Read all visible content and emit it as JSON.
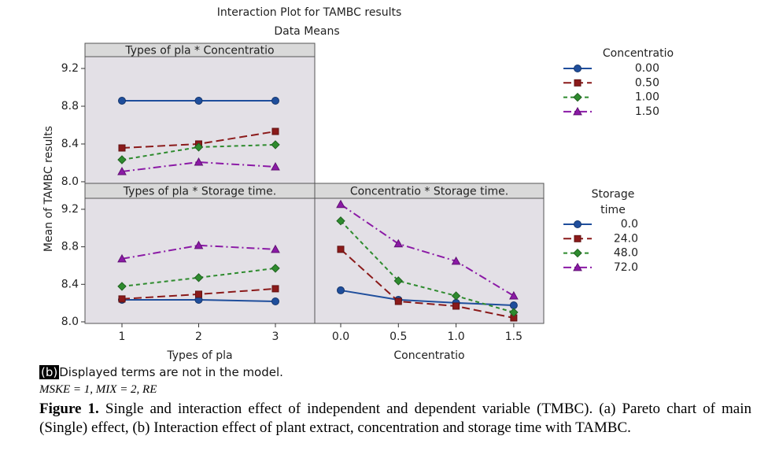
{
  "title": "Interaction Plot for TAMBC results",
  "subtitle": "Data Means",
  "y_label": "Mean of TAMBC results",
  "chart_data": [
    {
      "type": "line",
      "title": "Types of pla * Concentratio",
      "legend_title": "Concentratio",
      "x": [
        1,
        2,
        3
      ],
      "xlim": [
        0.518,
        3.513
      ],
      "ylim": [
        7.983,
        9.325
      ],
      "yticks": [
        {
          "value": 8.0,
          "label": "8.0"
        },
        {
          "value": 8.4,
          "label": "8.4"
        },
        {
          "value": 8.8,
          "label": "8.8"
        },
        {
          "value": 9.2,
          "label": "9.2"
        }
      ],
      "series": [
        {
          "name": "0.00",
          "color": "#1f4e9c",
          "marker": "circle",
          "dash": "solid",
          "values": [
            8.858,
            8.858,
            8.858
          ]
        },
        {
          "name": "0.50",
          "color": "#8b1a1a",
          "marker": "square",
          "dash": "long",
          "values": [
            8.358,
            8.4,
            8.533
          ]
        },
        {
          "name": "1.00",
          "color": "#2e8b2e",
          "marker": "diamond",
          "dash": "short",
          "values": [
            8.233,
            8.367,
            8.392
          ]
        },
        {
          "name": "1.50",
          "color": "#8b1aa6",
          "marker": "triangle",
          "dash": "dashdot",
          "values": [
            8.108,
            8.208,
            8.158
          ]
        }
      ]
    },
    {
      "type": "line",
      "title": "Types of pla * Storage time.",
      "x_label": "Types of pla",
      "x": [
        1,
        2,
        3
      ],
      "xlim": [
        0.518,
        3.513
      ],
      "xticks": [
        1,
        2,
        3
      ],
      "ylim": [
        7.983,
        9.317
      ],
      "yticks": [
        {
          "value": 8.0,
          "label": "8.0"
        },
        {
          "value": 8.4,
          "label": "8.4"
        },
        {
          "value": 8.8,
          "label": "8.8"
        },
        {
          "value": 9.2,
          "label": "9.2"
        }
      ],
      "series": [
        {
          "color": "#1f4e9c",
          "marker": "circle",
          "dash": "solid",
          "values": [
            8.235,
            8.235,
            8.218
          ]
        },
        {
          "color": "#8b1a1a",
          "marker": "square",
          "dash": "long",
          "values": [
            8.244,
            8.294,
            8.353
          ]
        },
        {
          "color": "#2e8b2e",
          "marker": "diamond",
          "dash": "short",
          "values": [
            8.378,
            8.471,
            8.571
          ]
        },
        {
          "color": "#8b1aa6",
          "marker": "triangle",
          "dash": "dashdot",
          "values": [
            8.672,
            8.815,
            8.773
          ]
        }
      ]
    },
    {
      "type": "line",
      "title": "Concentratio * Storage time.",
      "x_label": "Concentratio",
      "legend_title": "Storage time",
      "x": [
        0,
        0.5,
        1,
        1.5
      ],
      "xlim": [
        -0.225,
        1.76
      ],
      "xticks": [
        {
          "value": 0,
          "label": "0.0"
        },
        {
          "value": 0.5,
          "label": "0.5"
        },
        {
          "value": 1,
          "label": "1.0"
        },
        {
          "value": 1.5,
          "label": "1.5"
        }
      ],
      "ylim": [
        7.983,
        9.317
      ],
      "series": [
        {
          "name": "0.0",
          "color": "#1f4e9c",
          "marker": "circle",
          "dash": "solid",
          "values": [
            8.336,
            8.235,
            8.202,
            8.176
          ]
        },
        {
          "name": "24.0",
          "color": "#8b1a1a",
          "marker": "square",
          "dash": "long",
          "values": [
            8.773,
            8.218,
            8.168,
            8.042
          ]
        },
        {
          "name": "48.0",
          "color": "#2e8b2e",
          "marker": "diamond",
          "dash": "short",
          "values": [
            9.076,
            8.437,
            8.277,
            8.101
          ]
        },
        {
          "name": "72.0",
          "color": "#8b1aa6",
          "marker": "triangle",
          "dash": "dashdot",
          "values": [
            9.252,
            8.832,
            8.647,
            8.277
          ]
        }
      ]
    }
  ],
  "caption": {
    "label": "(b)",
    "note": "Displayed terms are not in the model.",
    "codes": "MSKE  = 1, MIX  = 2, RE",
    "figure_label": "Figure 1.",
    "text": "Single and interaction effect of independent and dependent variable (TMBC). (a) Pareto chart of main (Single) effect, (b) Interaction effect of plant extract, concentration and storage time with TAMBC."
  }
}
